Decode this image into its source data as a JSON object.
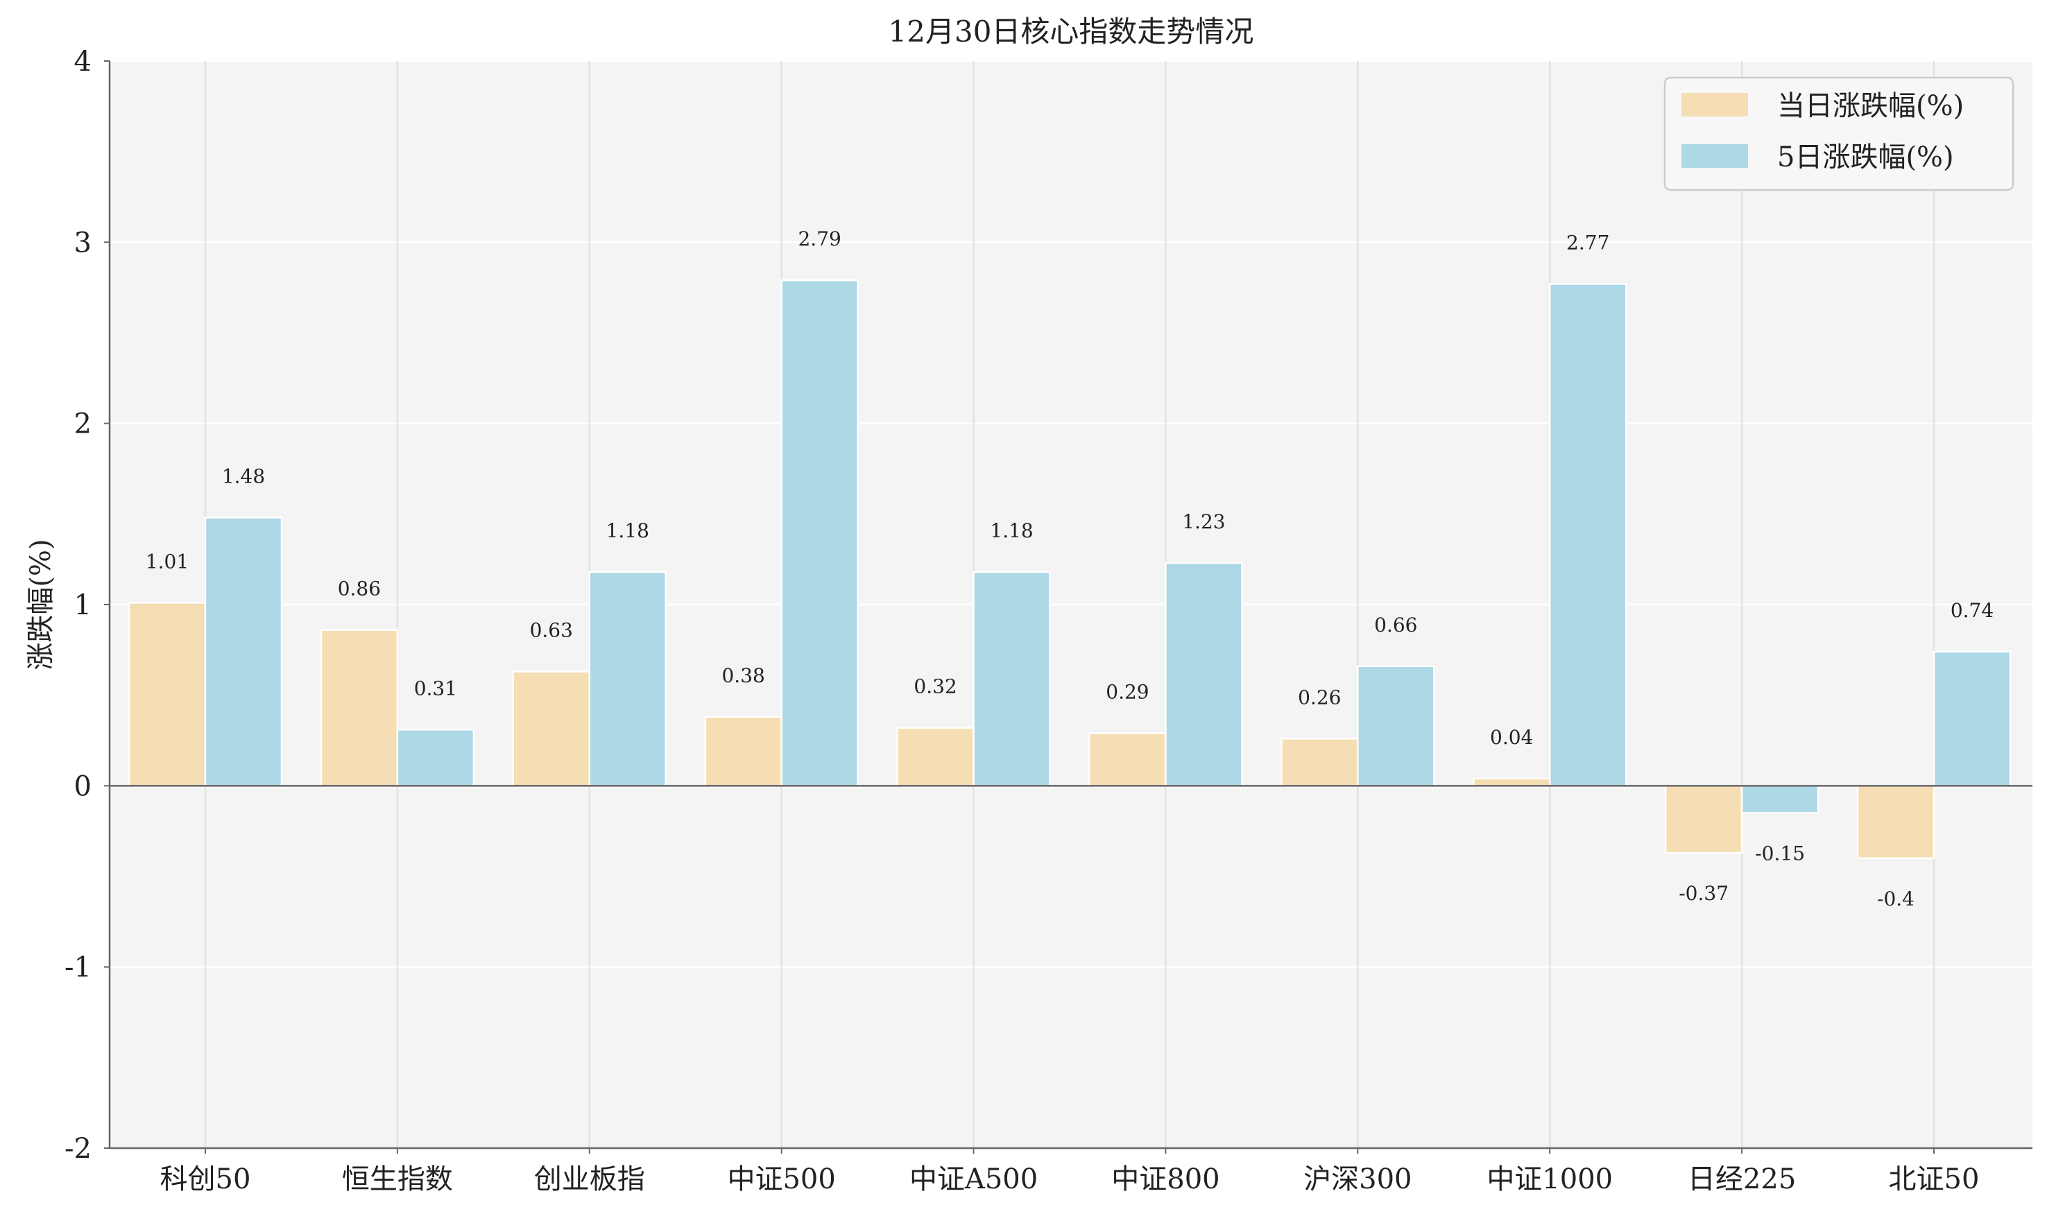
{
  "chart_data": {
    "type": "bar",
    "title": "12月30日核心指数走势情况",
    "ylabel": "涨跌幅(%)",
    "xlabel": "",
    "ylim": [
      -2,
      4
    ],
    "yticks": [
      -2,
      -1,
      0,
      1,
      2,
      3,
      4
    ],
    "grid": true,
    "legend_position": "top-right",
    "categories": [
      "科创50",
      "恒生指数",
      "创业板指",
      "中证500",
      "中证A500",
      "中证800",
      "沪深300",
      "中证1000",
      "日经225",
      "北证50"
    ],
    "series": [
      {
        "name": "当日涨跌幅(%)",
        "color": "#f5deb3",
        "values": [
          1.01,
          0.86,
          0.63,
          0.38,
          0.32,
          0.29,
          0.26,
          0.04,
          -0.37,
          -0.4
        ],
        "labels": [
          "1.01",
          "0.86",
          "0.63",
          "0.38",
          "0.32",
          "0.29",
          "0.26",
          "0.04",
          "-0.37",
          "-0.4"
        ]
      },
      {
        "name": "5日涨跌幅(%)",
        "color": "#add8e6",
        "values": [
          1.48,
          0.31,
          1.18,
          2.79,
          1.18,
          1.23,
          0.66,
          2.77,
          -0.15,
          0.74
        ],
        "labels": [
          "1.48",
          "0.31",
          "1.18",
          "2.79",
          "1.18",
          "1.23",
          "0.66",
          "2.77",
          "-0.15",
          "0.74"
        ]
      }
    ]
  }
}
